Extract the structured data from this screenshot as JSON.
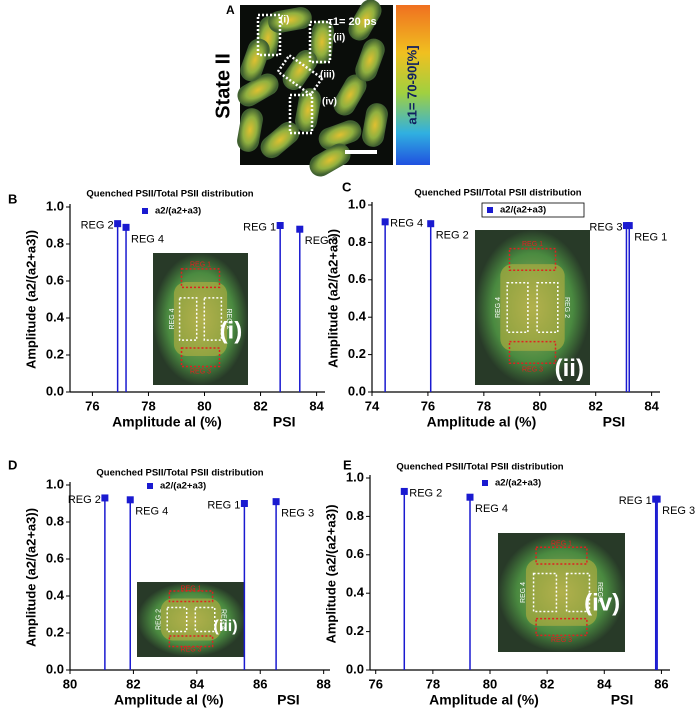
{
  "panel_a": {
    "label": "A",
    "title": "State II",
    "regions": [
      "(i)",
      "(ii)",
      "(iii)",
      "(iv)"
    ],
    "tau": "τ1= 20 ps",
    "colorbar_label": "a1= 70-90[%]"
  },
  "chart_data": [
    {
      "type": "stem",
      "label": "B",
      "title": "Quenched PSII/Total PSII distribution",
      "x_label": "Amplitude  al (%)",
      "x_note": "PSI",
      "y_label": "Amplitude (a2/(a2+a3))",
      "x": [
        76.9,
        77.2,
        82.7,
        83.4
      ],
      "series": [
        {
          "name": "a2/(a2+a3)",
          "color": "#1a1ad0",
          "values": [
            0.91,
            0.89,
            0.9,
            0.88
          ]
        }
      ],
      "point_labels": [
        "REG 2",
        "REG 4",
        "REG 1",
        "REG 3"
      ],
      "xlim": [
        75.2,
        84.3
      ],
      "xticks": [
        76,
        78,
        80,
        82,
        84
      ],
      "ylim": [
        0,
        1
      ],
      "yticks": [
        {
          "value": 0,
          "label": "0.0"
        },
        0.2,
        0.4,
        0.6,
        0.8,
        {
          "value": 1,
          "label": "1.0"
        }
      ],
      "inset": {
        "title": "(i)",
        "labels": [
          "REG 1",
          "REG 4",
          "REG 2",
          "REG 3"
        ]
      }
    },
    {
      "type": "stem",
      "label": "C",
      "title": "Quenched PSII/Total PSII distribution",
      "x_label": "Amplitude  al (%)",
      "x_note": "PSI",
      "y_label": "Amplitude (a2/(a2+a3))",
      "x": [
        74.47,
        76.1,
        83.1,
        83.2
      ],
      "series": [
        {
          "name": "a2/(a2+a3)",
          "color": "#1a1ad0",
          "values": [
            0.91,
            0.9,
            0.89,
            0.89
          ]
        }
      ],
      "point_labels": [
        "REG 4",
        "REG 2",
        "REG 3",
        "REG 1"
      ],
      "xlim": [
        74,
        84.3
      ],
      "xticks": [
        74,
        76,
        78,
        80,
        82,
        84
      ],
      "ylim": [
        0,
        1
      ],
      "yticks": [
        {
          "value": 0,
          "label": "0.0"
        },
        0.2,
        0.4,
        0.6,
        0.8,
        {
          "value": 1,
          "label": "1.0"
        }
      ],
      "inset": {
        "title": "(ii)",
        "labels": [
          "REG 1",
          "REG 4",
          "REG 2",
          "REG 3"
        ]
      }
    },
    {
      "type": "stem",
      "label": "D",
      "title": "Quenched PSII/Total PSII distribution",
      "x_label": "Amplitude  al (%)",
      "x_note": "PSI",
      "y_label": "Amplitude (a2/(a2+a3))",
      "x": [
        81.1,
        81.9,
        85.5,
        86.5
      ],
      "series": [
        {
          "name": "a2/(a2+a3)",
          "color": "#1a1ad0",
          "values": [
            0.93,
            0.92,
            0.9,
            0.91
          ]
        }
      ],
      "point_labels": [
        "REG 2",
        "REG 4",
        "REG 1",
        "REG 3"
      ],
      "xlim": [
        80,
        88.2
      ],
      "xticks": [
        80,
        82,
        84,
        86,
        88
      ],
      "ylim": [
        0,
        1
      ],
      "yticks": [
        {
          "value": 0,
          "label": "0.0"
        },
        0.2,
        0.4,
        0.6,
        0.8,
        {
          "value": 1,
          "label": "1.0"
        }
      ],
      "inset": {
        "title": "(iii)",
        "labels": [
          "REG 1",
          "REG 2",
          "REG 4",
          "REG 3"
        ]
      }
    },
    {
      "type": "stem",
      "label": "E",
      "title": "Quenched PSII/Total PSII distribution",
      "x_label": "Amplitude  al (%)",
      "x_note": "PSI",
      "y_label": "Amplitude (a2/(a2+a3))",
      "x": [
        77.0,
        79.3,
        85.8,
        85.85
      ],
      "series": [
        {
          "name": "a2/(a2+a3)",
          "color": "#1a1ad0",
          "values": [
            0.93,
            0.9,
            0.89,
            0.89
          ]
        }
      ],
      "point_labels": [
        "REG 2",
        "REG 4",
        "REG 1",
        "REG 3"
      ],
      "xlim": [
        75.8,
        86.3
      ],
      "xticks": [
        76,
        78,
        80,
        82,
        84,
        86
      ],
      "ylim": [
        0,
        1
      ],
      "yticks": [
        {
          "value": 0,
          "label": "0.0"
        },
        0.2,
        0.4,
        0.6,
        0.8,
        {
          "value": 1,
          "label": "1.0"
        }
      ],
      "inset": {
        "title": "(iv)",
        "labels": [
          "REG 1",
          "REG 4",
          "REG 2",
          "REG 3"
        ]
      }
    }
  ]
}
